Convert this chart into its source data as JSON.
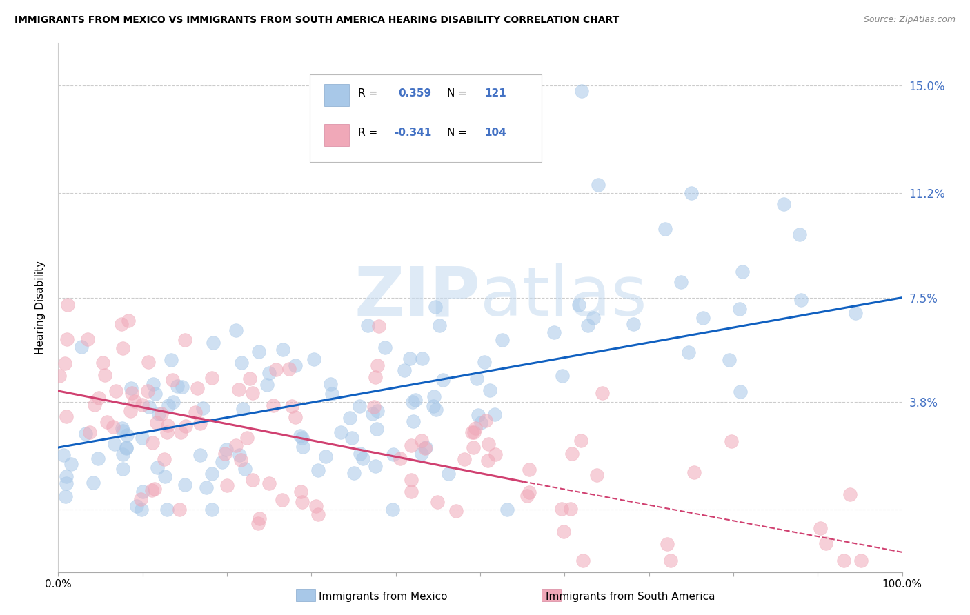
{
  "title": "IMMIGRANTS FROM MEXICO VS IMMIGRANTS FROM SOUTH AMERICA HEARING DISABILITY CORRELATION CHART",
  "source": "Source: ZipAtlas.com",
  "ylabel": "Hearing Disability",
  "legend_label1": "Immigrants from Mexico",
  "legend_label2": "Immigrants from South America",
  "r1": 0.359,
  "n1": 121,
  "r2": -0.341,
  "n2": 104,
  "color_mexico": "#A8C8E8",
  "color_south_america": "#F0A8B8",
  "color_line_mexico": "#1060C0",
  "color_line_south_america": "#D04070",
  "watermark_color": "#C8DCF0",
  "background_color": "#FFFFFF",
  "xlim": [
    0.0,
    1.0
  ],
  "ylim": [
    -0.022,
    0.165
  ],
  "yticks": [
    0.0,
    0.038,
    0.075,
    0.112,
    0.15
  ],
  "ytick_labels": [
    "",
    "3.8%",
    "7.5%",
    "11.2%",
    "15.0%"
  ],
  "line_mex_x0": 0.0,
  "line_mex_y0": 0.022,
  "line_mex_x1": 1.0,
  "line_mex_y1": 0.075,
  "line_sa_x0": 0.0,
  "line_sa_y0": 0.042,
  "line_sa_x1": 0.55,
  "line_sa_y1": 0.01,
  "line_sa_dash_x0": 0.55,
  "line_sa_dash_y0": 0.01,
  "line_sa_dash_x1": 1.0,
  "line_sa_dash_y1": -0.015
}
